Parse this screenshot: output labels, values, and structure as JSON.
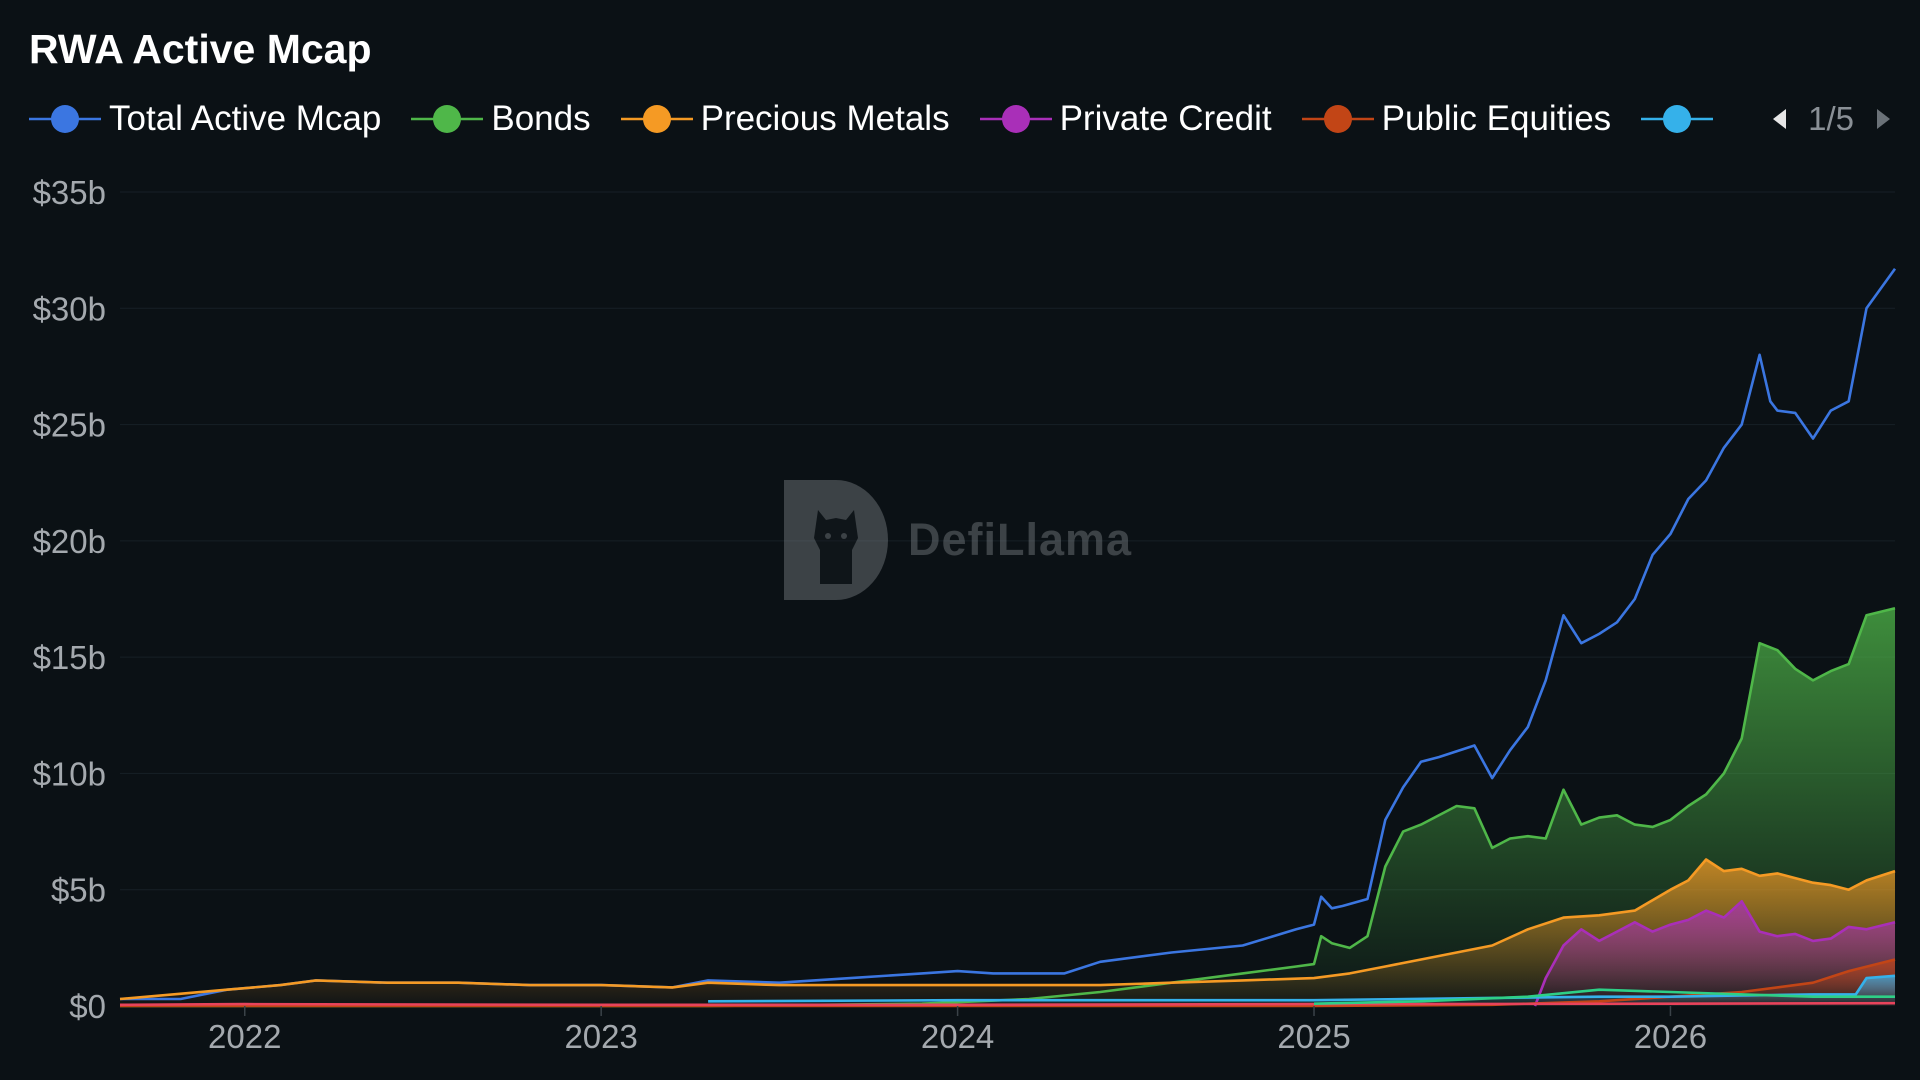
{
  "chart_data": {
    "type": "area",
    "title": "RWA Active Mcap",
    "xlabel": "",
    "ylabel": "",
    "x_ticks": [
      "2022",
      "2023",
      "2024",
      "2025",
      "2026"
    ],
    "y_ticks": [
      "$0",
      "$5b",
      "$10b",
      "$15b",
      "$20b",
      "$25b",
      "$30b",
      "$35b"
    ],
    "ylim": [
      0,
      35
    ],
    "xlim": [
      2021.65,
      2026.63
    ],
    "grid": true,
    "legend": {
      "placement": "top-left",
      "page": "1/5"
    },
    "series": [
      {
        "name": "Total Active Mcap",
        "color": "#3b76e1",
        "fill": false,
        "x": [
          2021.65,
          2021.82,
          2021.95,
          2022.1,
          2022.2,
          2022.4,
          2022.6,
          2022.8,
          2023.0,
          2023.2,
          2023.3,
          2023.5,
          2023.7,
          2023.9,
          2024.0,
          2024.1,
          2024.2,
          2024.3,
          2024.4,
          2024.6,
          2024.8,
          2024.95,
          2025.0,
          2025.02,
          2025.05,
          2025.08,
          2025.15,
          2025.2,
          2025.25,
          2025.3,
          2025.35,
          2025.45,
          2025.5,
          2025.55,
          2025.6,
          2025.65,
          2025.7,
          2025.75,
          2025.8,
          2025.85,
          2025.9,
          2025.95,
          2026.0,
          2026.05,
          2026.1,
          2026.15,
          2026.2,
          2026.25,
          2026.28,
          2026.3,
          2026.35,
          2026.4,
          2026.45,
          2026.5,
          2026.55,
          2026.63
        ],
        "values": [
          0.3,
          0.3,
          0.7,
          0.9,
          1.1,
          1.0,
          1.0,
          0.9,
          0.9,
          0.8,
          1.1,
          1.0,
          1.2,
          1.4,
          1.5,
          1.4,
          1.4,
          1.4,
          1.9,
          2.3,
          2.6,
          3.3,
          3.5,
          4.7,
          4.2,
          4.3,
          4.6,
          8.0,
          9.4,
          10.5,
          10.7,
          11.2,
          9.8,
          11.0,
          12.0,
          14.0,
          16.8,
          15.6,
          16.0,
          16.5,
          17.5,
          19.4,
          20.3,
          21.8,
          22.6,
          24.0,
          25.0,
          28.0,
          26.0,
          25.6,
          25.5,
          24.4,
          25.6,
          26.0,
          30.0,
          31.7
        ]
      },
      {
        "name": "Bonds",
        "color": "#4fb749",
        "fill": true,
        "x": [
          2021.65,
          2023.3,
          2023.9,
          2024.2,
          2024.4,
          2024.6,
          2024.8,
          2024.95,
          2025.0,
          2025.02,
          2025.05,
          2025.1,
          2025.15,
          2025.2,
          2025.25,
          2025.3,
          2025.4,
          2025.45,
          2025.5,
          2025.55,
          2025.6,
          2025.65,
          2025.7,
          2025.75,
          2025.8,
          2025.85,
          2025.9,
          2025.95,
          2026.0,
          2026.05,
          2026.1,
          2026.15,
          2026.2,
          2026.25,
          2026.3,
          2026.35,
          2026.4,
          2026.45,
          2026.5,
          2026.55,
          2026.63
        ],
        "values": [
          0.0,
          0.0,
          0.1,
          0.3,
          0.6,
          1.0,
          1.4,
          1.7,
          1.8,
          3.0,
          2.7,
          2.5,
          3.0,
          6.0,
          7.5,
          7.8,
          8.6,
          8.5,
          6.8,
          7.2,
          7.3,
          7.2,
          9.3,
          7.8,
          8.1,
          8.2,
          7.8,
          7.7,
          8.0,
          8.6,
          9.1,
          10.0,
          11.5,
          15.6,
          15.3,
          14.5,
          14.0,
          14.4,
          14.7,
          16.8,
          17.1
        ]
      },
      {
        "name": "Precious Metals",
        "color": "#f59a24",
        "fill": true,
        "x": [
          2021.65,
          2021.95,
          2022.1,
          2022.2,
          2022.4,
          2022.6,
          2022.8,
          2023.0,
          2023.2,
          2023.3,
          2023.5,
          2023.7,
          2023.9,
          2024.0,
          2024.2,
          2024.4,
          2024.6,
          2024.8,
          2025.0,
          2025.1,
          2025.2,
          2025.3,
          2025.4,
          2025.5,
          2025.6,
          2025.7,
          2025.8,
          2025.9,
          2026.0,
          2026.05,
          2026.1,
          2026.15,
          2026.2,
          2026.25,
          2026.3,
          2026.35,
          2026.4,
          2026.45,
          2026.5,
          2026.55,
          2026.63
        ],
        "values": [
          0.3,
          0.7,
          0.9,
          1.1,
          1.0,
          1.0,
          0.9,
          0.9,
          0.8,
          1.0,
          0.9,
          0.9,
          0.9,
          0.9,
          0.9,
          0.9,
          1.0,
          1.1,
          1.2,
          1.4,
          1.7,
          2.0,
          2.3,
          2.6,
          3.3,
          3.8,
          3.9,
          4.1,
          5.0,
          5.4,
          6.3,
          5.8,
          5.9,
          5.6,
          5.7,
          5.5,
          5.3,
          5.2,
          5.0,
          5.4,
          5.8
        ]
      },
      {
        "name": "Private Credit",
        "color": "#a92fb8",
        "fill": true,
        "x": [
          2025.62,
          2025.65,
          2025.7,
          2025.75,
          2025.8,
          2025.85,
          2025.9,
          2025.95,
          2026.0,
          2026.05,
          2026.1,
          2026.15,
          2026.2,
          2026.25,
          2026.3,
          2026.35,
          2026.4,
          2026.45,
          2026.5,
          2026.55,
          2026.63
        ],
        "values": [
          0.0,
          1.2,
          2.6,
          3.3,
          2.8,
          3.2,
          3.6,
          3.2,
          3.5,
          3.7,
          4.1,
          3.8,
          4.5,
          3.2,
          3.0,
          3.1,
          2.8,
          2.9,
          3.4,
          3.3,
          3.6
        ]
      },
      {
        "name": "Public Equities",
        "color": "#c24516",
        "fill": true,
        "x": [
          2021.65,
          2025.0,
          2025.5,
          2025.8,
          2026.0,
          2026.2,
          2026.4,
          2026.5,
          2026.63
        ],
        "values": [
          0.0,
          0.0,
          0.05,
          0.2,
          0.4,
          0.6,
          1.0,
          1.5,
          2.0
        ]
      },
      {
        "name": "",
        "color": "#35b1ea",
        "fill": true,
        "x": [
          2023.3,
          2024.0,
          2025.0,
          2025.5,
          2025.8,
          2026.0,
          2026.2,
          2026.4,
          2026.52,
          2026.55,
          2026.63
        ],
        "values": [
          0.2,
          0.25,
          0.25,
          0.35,
          0.4,
          0.4,
          0.45,
          0.5,
          0.5,
          1.2,
          1.3
        ]
      },
      {
        "name": "",
        "color": "#e8435b",
        "fill": false,
        "x": [
          2021.65,
          2022.0,
          2023.0,
          2024.0,
          2025.0,
          2026.0,
          2026.63
        ],
        "values": [
          0.05,
          0.08,
          0.05,
          0.05,
          0.08,
          0.1,
          0.12
        ]
      },
      {
        "name": "",
        "color": "#2ecf86",
        "fill": false,
        "x": [
          2025.0,
          2025.3,
          2025.6,
          2025.8,
          2026.0,
          2026.2,
          2026.4,
          2026.63
        ],
        "values": [
          0.1,
          0.2,
          0.4,
          0.7,
          0.6,
          0.5,
          0.4,
          0.4
        ]
      }
    ]
  },
  "watermark": {
    "text": "DefiLlama"
  },
  "icons": {
    "prev": "triangle-left-icon",
    "next": "triangle-right-icon",
    "logo": "llama-logo-icon"
  }
}
